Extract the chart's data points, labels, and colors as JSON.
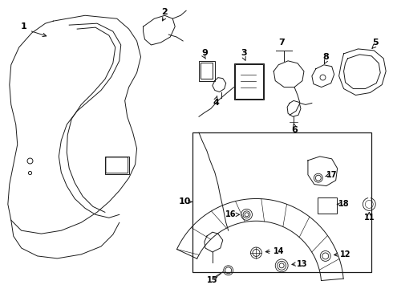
{
  "background_color": "#ffffff",
  "line_color": "#1a1a1a",
  "text_color": "#000000",
  "fig_width": 4.9,
  "fig_height": 3.6,
  "dpi": 100
}
